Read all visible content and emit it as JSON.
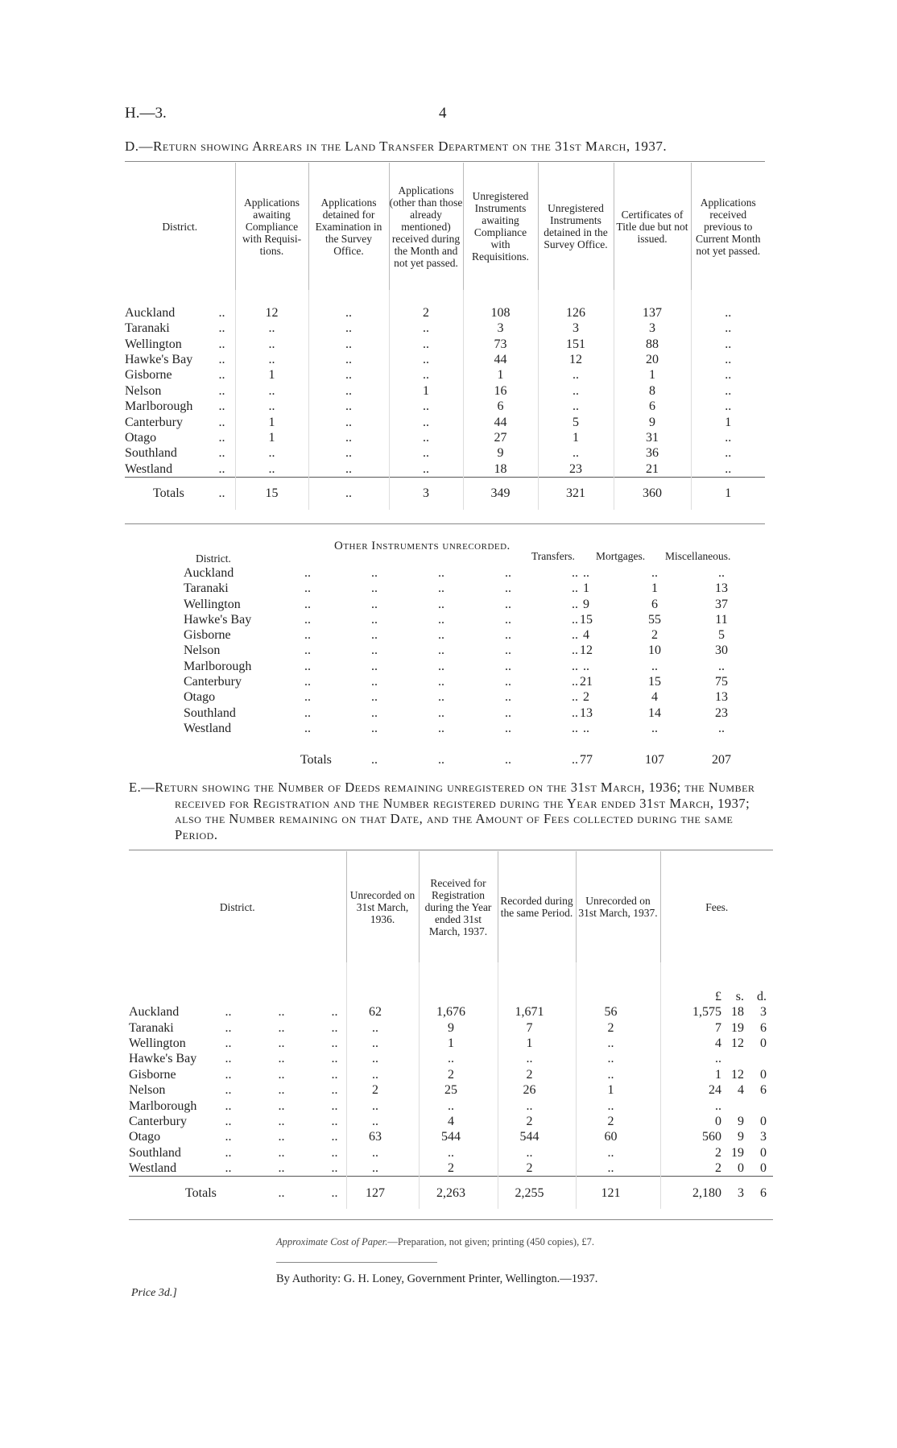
{
  "header": {
    "ref": "H.—3.",
    "page_number": "4"
  },
  "table_d": {
    "title": "D.—Return showing Arrears in the Land Transfer Department on the 31st March, 1937.",
    "columns": [
      "District.",
      "Applications awaiting Compliance with Requisi-tions.",
      "Applications detained for Examination in the Survey Office.",
      "Applications (other than those already mentioned) received during the Month and not yet passed.",
      "Unregistered Instruments awaiting Compliance with Requisitions.",
      "Unregistered Instruments detained in the Survey Office.",
      "Certificates of Title due but not issued.",
      "Applications received previous to Current Month not yet passed."
    ],
    "rows": [
      [
        "Auckland",
        "12",
        "..",
        "2",
        "108",
        "126",
        "137",
        ".."
      ],
      [
        "Taranaki",
        "..",
        "..",
        "..",
        "3",
        "3",
        "3",
        ".."
      ],
      [
        "Wellington",
        "..",
        "..",
        "..",
        "73",
        "151",
        "88",
        ".."
      ],
      [
        "Hawke's Bay",
        "..",
        "..",
        "..",
        "44",
        "12",
        "20",
        ".."
      ],
      [
        "Gisborne",
        "1",
        "..",
        "..",
        "1",
        "..",
        "1",
        ".."
      ],
      [
        "Nelson",
        "..",
        "..",
        "1",
        "16",
        "..",
        "8",
        ".."
      ],
      [
        "Marlborough",
        "..",
        "..",
        "..",
        "6",
        "..",
        "6",
        ".."
      ],
      [
        "Canterbury",
        "1",
        "..",
        "..",
        "44",
        "5",
        "9",
        "1"
      ],
      [
        "Otago",
        "1",
        "..",
        "..",
        "27",
        "1",
        "31",
        ".."
      ],
      [
        "Southland",
        "..",
        "..",
        "..",
        "9",
        "..",
        "36",
        ".."
      ],
      [
        "Westland",
        "..",
        "..",
        "..",
        "18",
        "23",
        "21",
        ".."
      ]
    ],
    "totals": [
      "Totals",
      "15",
      "..",
      "3",
      "349",
      "321",
      "360",
      "1"
    ]
  },
  "table_other": {
    "title": "Other Instruments unrecorded.",
    "columns": [
      "District.",
      "Transfers.",
      "Mortgages.",
      "Miscellaneous."
    ],
    "rows": [
      [
        "Auckland",
        "..",
        "..",
        ".."
      ],
      [
        "Taranaki",
        "1",
        "1",
        "13"
      ],
      [
        "Wellington",
        "9",
        "6",
        "37"
      ],
      [
        "Hawke's Bay",
        "15",
        "55",
        "11"
      ],
      [
        "Gisborne",
        "4",
        "2",
        "5"
      ],
      [
        "Nelson",
        "12",
        "10",
        "30"
      ],
      [
        "Marlborough",
        "..",
        "..",
        ".."
      ],
      [
        "Canterbury",
        "21",
        "15",
        "75"
      ],
      [
        "Otago",
        "2",
        "4",
        "13"
      ],
      [
        "Southland",
        "13",
        "14",
        "23"
      ],
      [
        "Westland",
        "..",
        "..",
        ".."
      ]
    ],
    "totals": [
      "Totals",
      "77",
      "107",
      "207"
    ]
  },
  "table_e": {
    "title": "E.—Return showing the Number of Deeds remaining unregistered on the 31st March, 1936; the Number received for Registration and the Number registered during the Year ended 31st March, 1937; also the Number remaining on that Date, and the Amount of Fees collected during the same Period.",
    "columns": [
      "District.",
      "Unrecorded on 31st March, 1936.",
      "Received for Registration during the Year ended 31st March, 1937.",
      "Recorded during the same Period.",
      "Unrecorded on 31st March, 1937.",
      "Fees."
    ],
    "fee_units": [
      "£",
      "s.",
      "d."
    ],
    "rows": [
      [
        "Auckland",
        "62",
        "1,676",
        "1,671",
        "56",
        "1,575",
        "18",
        "3"
      ],
      [
        "Taranaki",
        "..",
        "9",
        "7",
        "2",
        "7",
        "19",
        "6"
      ],
      [
        "Wellington",
        "..",
        "1",
        "1",
        "..",
        "4",
        "12",
        "0"
      ],
      [
        "Hawke's Bay",
        "..",
        "..",
        "..",
        "..",
        "..",
        "",
        ""
      ],
      [
        "Gisborne",
        "..",
        "2",
        "2",
        "..",
        "1",
        "12",
        "0"
      ],
      [
        "Nelson",
        "2",
        "25",
        "26",
        "1",
        "24",
        "4",
        "6"
      ],
      [
        "Marlborough",
        "..",
        "..",
        "..",
        "..",
        "..",
        "",
        ""
      ],
      [
        "Canterbury",
        "..",
        "4",
        "2",
        "2",
        "0",
        "9",
        "0"
      ],
      [
        "Otago",
        "63",
        "544",
        "544",
        "60",
        "560",
        "9",
        "3"
      ],
      [
        "Southland",
        "..",
        "..",
        "..",
        "..",
        "2",
        "19",
        "0"
      ],
      [
        "Westland",
        "..",
        "2",
        "2",
        "..",
        "2",
        "0",
        "0"
      ]
    ],
    "totals": [
      "Totals",
      "127",
      "2,263",
      "2,255",
      "121",
      "2,180",
      "3",
      "6"
    ]
  },
  "footer": {
    "cost_label": "Approximate Cost of Paper.",
    "cost_text": "—Preparation, not given; printing (450 copies), £7.",
    "authority": "By Authority: G. H. Loney, Government Printer, Wellington.—1937.",
    "price": "Price 3d.]"
  },
  "leader": ".."
}
